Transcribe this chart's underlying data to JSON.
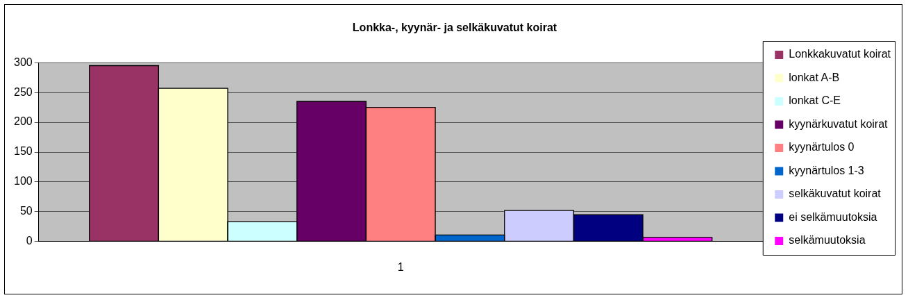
{
  "chart_data": {
    "type": "bar",
    "title": "Lonkka-, kyynär- ja selkäkuvatut koirat",
    "categories": [
      "1"
    ],
    "series": [
      {
        "name": "Lonkkakuvatut koirat",
        "color": "#993366",
        "values": [
          295
        ]
      },
      {
        "name": "lonkat A-B",
        "color": "#ffffcc",
        "values": [
          257
        ]
      },
      {
        "name": "lonkat C-E",
        "color": "#ccffff",
        "values": [
          33
        ]
      },
      {
        "name": "kyynärkuvatut koirat",
        "color": "#660066",
        "values": [
          235
        ]
      },
      {
        "name": "kyynärtulos 0",
        "color": "#ff8080",
        "values": [
          225
        ]
      },
      {
        "name": "kyynärtulos 1-3",
        "color": "#0066cc",
        "values": [
          11
        ]
      },
      {
        "name": "selkäkuvatut koirat",
        "color": "#ccccff",
        "values": [
          52
        ]
      },
      {
        "name": "ei selkämuutoksia",
        "color": "#000080",
        "values": [
          45
        ]
      },
      {
        "name": "selkämuutoksia",
        "color": "#ff00ff",
        "values": [
          7
        ]
      }
    ],
    "ylim": [
      0,
      300
    ],
    "yticks": [
      0,
      50,
      100,
      150,
      200,
      250,
      300
    ],
    "grid": "y",
    "legend": "right"
  }
}
